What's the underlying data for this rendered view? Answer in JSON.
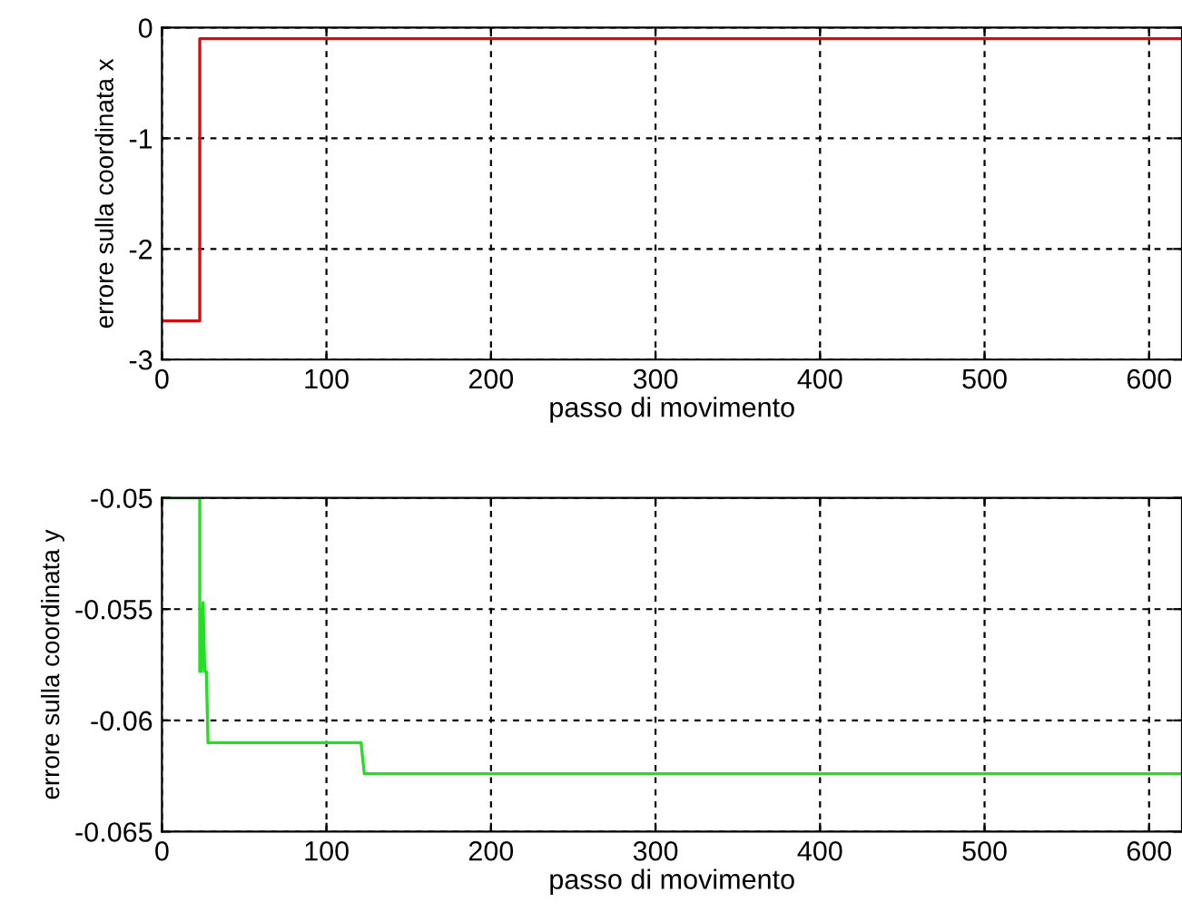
{
  "chart_data": [
    {
      "type": "line",
      "xlabel": "passo di movimento",
      "ylabel": "errore sulla coordinata x",
      "xlim": [
        0,
        620
      ],
      "xticks": [
        0,
        100,
        200,
        300,
        400,
        500,
        600
      ],
      "ylim": [
        -3,
        0
      ],
      "yticks": [
        -3,
        -2,
        -1,
        0
      ],
      "grid": true,
      "series": [
        {
          "color": "#d01010",
          "x": [
            0,
            23,
            23,
            620
          ],
          "values": [
            -2.65,
            -2.65,
            -0.1,
            -0.1
          ]
        }
      ]
    },
    {
      "type": "line",
      "xlabel": "passo di movimento",
      "ylabel": "errore sulla coordinata y",
      "xlim": [
        0,
        620
      ],
      "xticks": [
        0,
        100,
        200,
        300,
        400,
        500,
        600
      ],
      "ylim": [
        -0.065,
        -0.05
      ],
      "yticks": [
        -0.065,
        -0.06,
        -0.055,
        -0.05
      ],
      "grid": true,
      "series": [
        {
          "color": "#20e020",
          "x": [
            0,
            23,
            23,
            24,
            25,
            26,
            27,
            28,
            121,
            123,
            620
          ],
          "values": [
            -0.05,
            -0.05,
            -0.0578,
            -0.0578,
            -0.0547,
            -0.0578,
            -0.0578,
            -0.061,
            -0.061,
            -0.0624,
            -0.0624
          ]
        }
      ]
    }
  ]
}
